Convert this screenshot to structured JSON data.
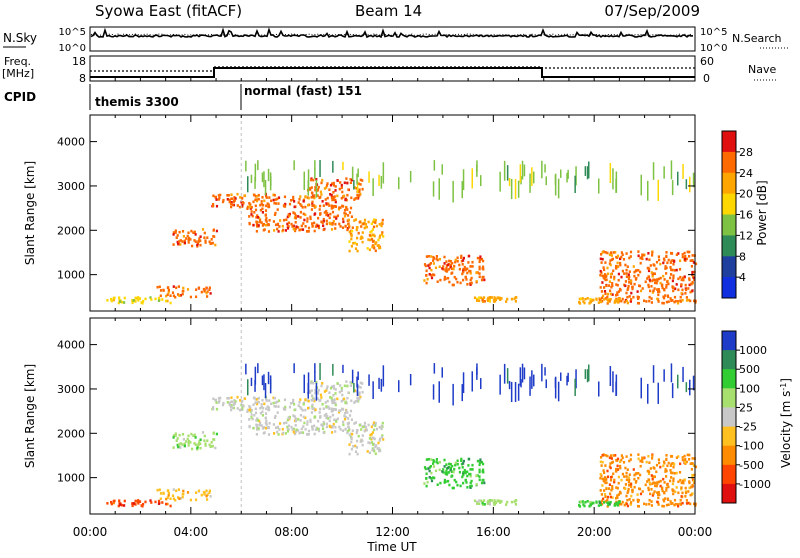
{
  "header": {
    "title": "Syowa East (fitACF)",
    "beam": "Beam 14",
    "date": "07/Sep/2009"
  },
  "sky_panel": {
    "label": "N.Sky",
    "tick_top": "10^5",
    "tick_bottom": "10^0",
    "right_label": "N.Search"
  },
  "freq_panel": {
    "label_line1": "Freq.",
    "label_line2": "[MHz]",
    "ticks_left": [
      "18",
      "8"
    ],
    "ticks_right": [
      "60",
      "0"
    ],
    "right_label": "Nave"
  },
  "cpid_panel": {
    "label": "CPID",
    "segments": [
      {
        "start": 0,
        "end": 6,
        "name": "themis 3300"
      },
      {
        "start": 6,
        "end": 24,
        "name": "normal (fast) 151"
      }
    ]
  },
  "time_axis": {
    "label": "Time UT",
    "ticks": [
      "00:00",
      "04:00",
      "08:00",
      "12:00",
      "16:00",
      "20:00",
      "00:00"
    ]
  },
  "chart_data": [
    {
      "type": "heatmap",
      "name": "power",
      "xlabel": "",
      "ylabel": "Slant Range [km]",
      "xlim": [
        0,
        24
      ],
      "ylim": [
        180,
        4600
      ],
      "yticks": [
        1000,
        2000,
        3000,
        4000
      ],
      "colorbar": {
        "label": "Power [dB]",
        "ticks": [
          "28",
          "24",
          "20",
          "16",
          "12",
          "8",
          "4"
        ],
        "colors": [
          "#e01010",
          "#ff6a00",
          "#ffa500",
          "#ffd700",
          "#7dc242",
          "#2e8b57",
          "#1f3f9f",
          "#1030e0"
        ]
      },
      "regions": [
        {
          "t": [
            0.6,
            3.2
          ],
          "r": [
            380,
            520
          ],
          "level": 3
        },
        {
          "t": [
            2.6,
            4.8
          ],
          "r": [
            520,
            760
          ],
          "level": 1
        },
        {
          "t": [
            4.8,
            9.8
          ],
          "r": [
            2550,
            2850
          ],
          "level": 1
        },
        {
          "t": [
            6.2,
            10.4
          ],
          "r": [
            2000,
            2600
          ],
          "level": 1
        },
        {
          "t": [
            8.6,
            10.8
          ],
          "r": [
            2700,
            3200
          ],
          "level": 1
        },
        {
          "t": [
            10.2,
            11.6
          ],
          "r": [
            1550,
            2300
          ],
          "level": 2
        },
        {
          "t": [
            3.2,
            5.0
          ],
          "r": [
            1650,
            2050
          ],
          "level": 1
        },
        {
          "t": [
            13.2,
            15.6
          ],
          "r": [
            780,
            1450
          ],
          "level": 1
        },
        {
          "t": [
            20.2,
            24.0
          ],
          "r": [
            380,
            1550
          ],
          "level": 1
        },
        {
          "t": [
            15.2,
            17.0
          ],
          "r": [
            420,
            520
          ],
          "level": 2
        },
        {
          "t": [
            19.2,
            21.0
          ],
          "r": [
            380,
            500
          ],
          "level": 2
        },
        {
          "t": [
            6.0,
            24.0
          ],
          "r": [
            3100,
            3600
          ],
          "level": 4
        }
      ]
    },
    {
      "type": "heatmap",
      "name": "velocity",
      "xlabel": "Time UT",
      "ylabel": "Slant Range [km]",
      "xlim": [
        0,
        24
      ],
      "ylim": [
        180,
        4600
      ],
      "yticks": [
        1000,
        2000,
        3000,
        4000
      ],
      "colorbar": {
        "label": "Velocity [m s^-1]",
        "ticks": [
          "1000",
          "500",
          "100",
          "25",
          "-25",
          "-100",
          "-500",
          "-1000"
        ],
        "colors": [
          "#1e3cc8",
          "#2e8b57",
          "#32cd32",
          "#a8e070",
          "#c8c8c8",
          "#ffc020",
          "#ff8c00",
          "#ff4500",
          "#e01010"
        ]
      },
      "regions": [
        {
          "t": [
            0.6,
            3.2
          ],
          "r": [
            380,
            520
          ],
          "level": 7
        },
        {
          "t": [
            2.6,
            4.8
          ],
          "r": [
            520,
            760
          ],
          "level": 5
        },
        {
          "t": [
            4.8,
            9.8
          ],
          "r": [
            2550,
            2850
          ],
          "level": 4
        },
        {
          "t": [
            6.2,
            10.4
          ],
          "r": [
            2000,
            2600
          ],
          "level": 4
        },
        {
          "t": [
            8.6,
            10.8
          ],
          "r": [
            2700,
            3200
          ],
          "level": 4
        },
        {
          "t": [
            10.2,
            11.6
          ],
          "r": [
            1550,
            2300
          ],
          "level": 4
        },
        {
          "t": [
            3.2,
            5.0
          ],
          "r": [
            1650,
            2050
          ],
          "level": 3
        },
        {
          "t": [
            13.2,
            15.6
          ],
          "r": [
            780,
            1450
          ],
          "level": 2
        },
        {
          "t": [
            20.2,
            24.0
          ],
          "r": [
            380,
            1550
          ],
          "level": 6
        },
        {
          "t": [
            15.2,
            17.0
          ],
          "r": [
            420,
            520
          ],
          "level": 3
        },
        {
          "t": [
            19.2,
            21.0
          ],
          "r": [
            380,
            500
          ],
          "level": 2
        },
        {
          "t": [
            6.0,
            24.0
          ],
          "r": [
            3100,
            3600
          ],
          "level": 0
        }
      ]
    }
  ]
}
